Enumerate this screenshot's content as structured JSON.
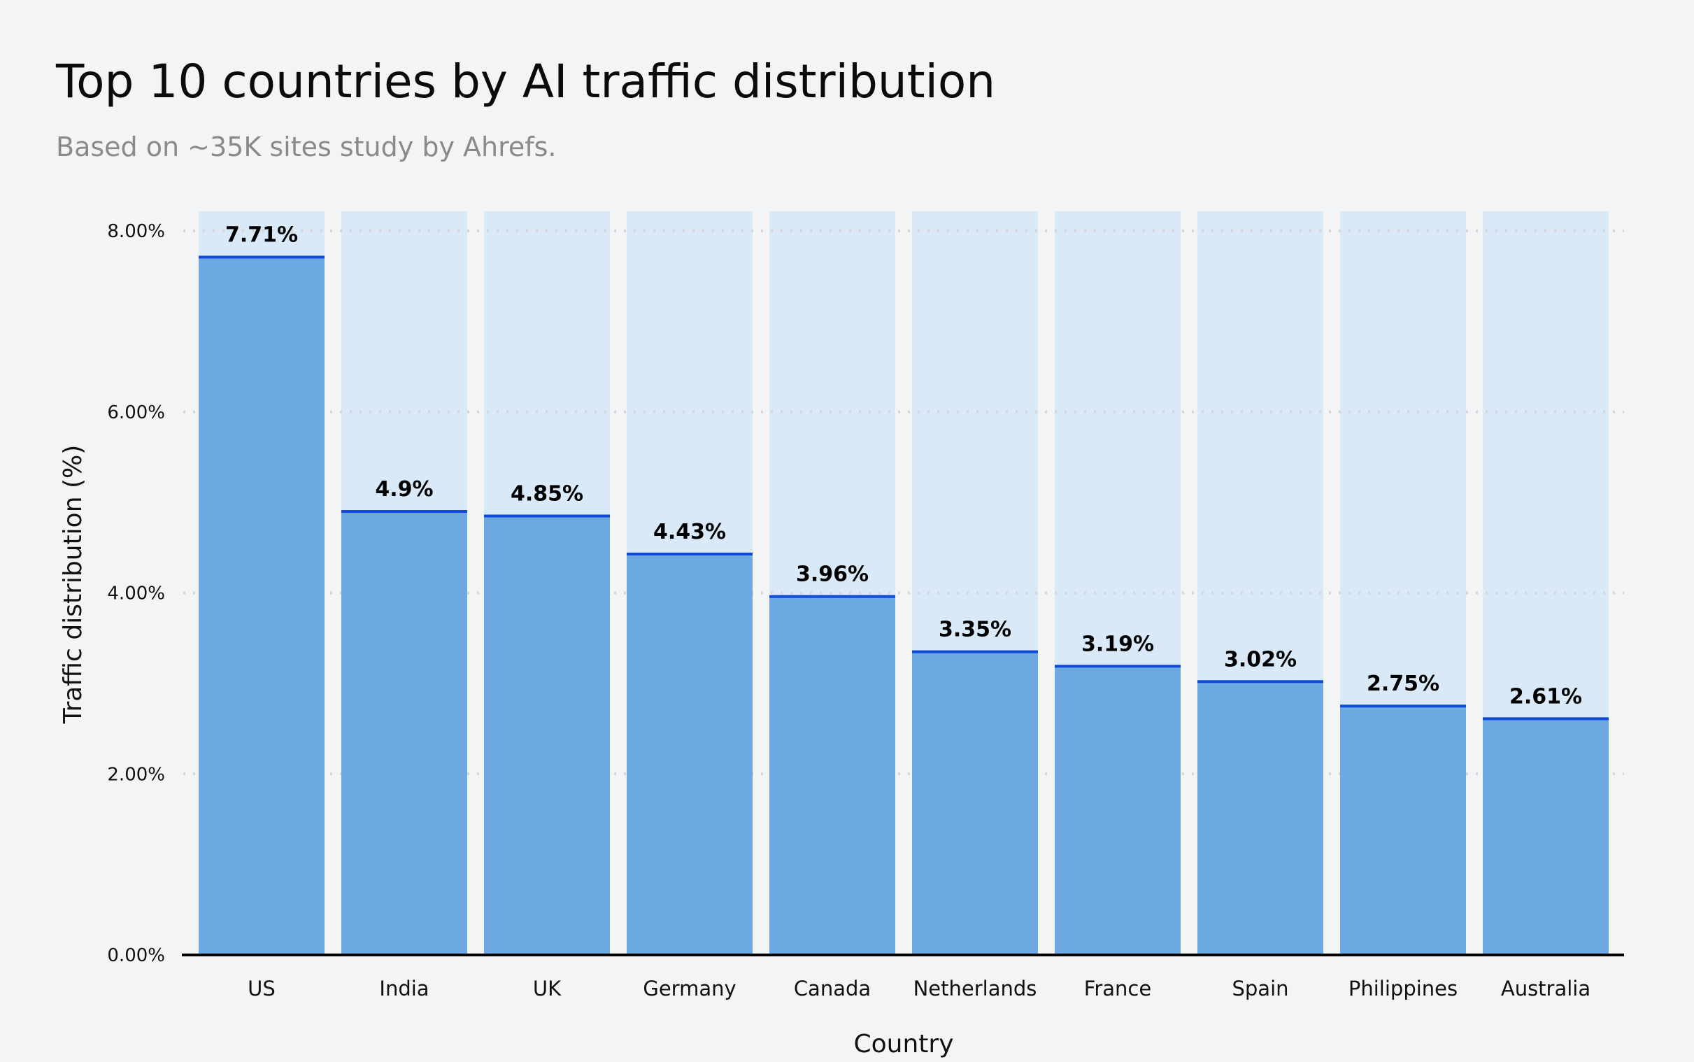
{
  "chart_data": {
    "type": "bar",
    "title": "Top 10 countries by AI traffic distribution",
    "subtitle": "Based on ~35K sites study by Ahrefs.",
    "xlabel": "Country",
    "ylabel": "Traffic distribution (%)",
    "ylim": [
      0,
      8
    ],
    "yticks": [
      "0.00%",
      "2.00%",
      "4.00%",
      "6.00%",
      "8.00%"
    ],
    "ytick_values": [
      0,
      2,
      4,
      6,
      8
    ],
    "grid": true,
    "categories": [
      "US",
      "India",
      "UK",
      "Germany",
      "Canada",
      "Netherlands",
      "France",
      "Spain",
      "Philippines",
      "Australia"
    ],
    "values": [
      7.71,
      4.9,
      4.85,
      4.43,
      3.96,
      3.35,
      3.19,
      3.02,
      2.75,
      2.61
    ],
    "value_labels": [
      "7.71%",
      "4.9%",
      "4.85%",
      "4.43%",
      "3.96%",
      "3.35%",
      "3.19%",
      "3.02%",
      "2.75%",
      "2.61%"
    ],
    "colors": {
      "bar": "#6ca9e0",
      "bar_top": "#1048d8",
      "track": "#d9e9f8",
      "grid": "#d4d6d9",
      "axis": "#000000"
    }
  }
}
